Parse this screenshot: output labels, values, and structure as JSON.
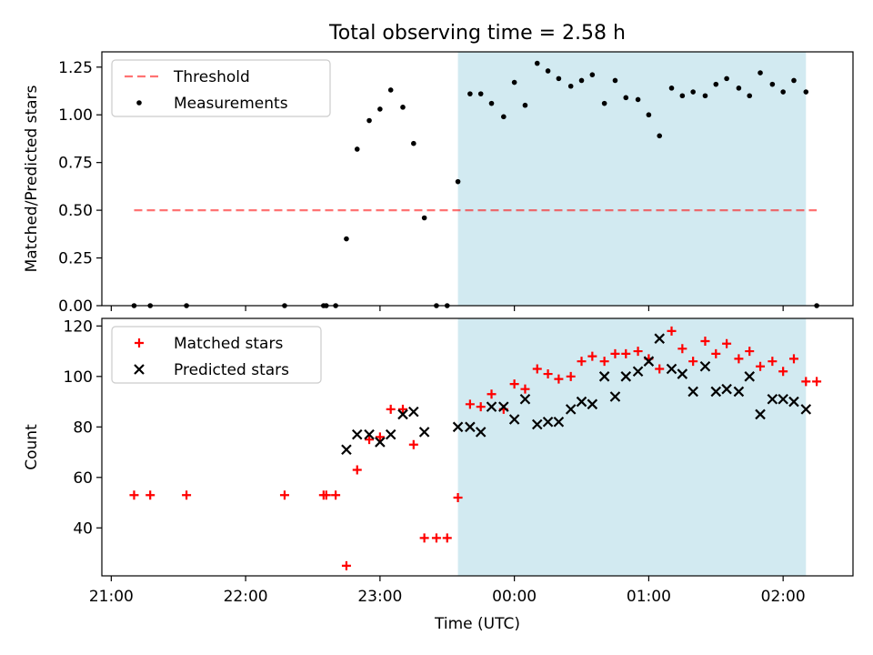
{
  "figure_title": "Total observing time = 2.58 h",
  "colors": {
    "shade": "#add8e6",
    "threshold": "#ff0000",
    "matched": "#ff0000",
    "predicted": "#000000",
    "measure": "#000000"
  },
  "chart_data": [
    {
      "type": "scatter",
      "title": "Total observing time = 2.58 h",
      "ylabel": "Matched/Predicted stars",
      "xlabel": "",
      "x_unit": "time (UTC), hours after 21:00",
      "xlim": [
        20.93,
        26.52
      ],
      "ylim": [
        0,
        1.33
      ],
      "yticks": [
        "0.00",
        "0.25",
        "0.50",
        "0.75",
        "1.00",
        "1.25"
      ],
      "shaded_region": {
        "x0": 23.58,
        "x1": 26.17
      },
      "legend": {
        "position": "top-left",
        "entries": [
          "Threshold",
          "Measurements"
        ]
      },
      "threshold": {
        "name": "Threshold",
        "y": 0.5,
        "x0": 21.17,
        "x1": 26.25,
        "style": "dashed"
      },
      "series": [
        {
          "name": "Measurements",
          "points": [
            [
              21.17,
              0.0
            ],
            [
              21.29,
              0.0
            ],
            [
              21.56,
              0.0
            ],
            [
              22.29,
              0.0
            ],
            [
              22.58,
              0.0
            ],
            [
              22.6,
              0.0
            ],
            [
              22.67,
              0.0
            ],
            [
              22.75,
              0.35
            ],
            [
              22.83,
              0.82
            ],
            [
              22.92,
              0.97
            ],
            [
              23.0,
              1.03
            ],
            [
              23.08,
              1.13
            ],
            [
              23.17,
              1.04
            ],
            [
              23.25,
              0.85
            ],
            [
              23.33,
              0.46
            ],
            [
              23.42,
              0.0
            ],
            [
              23.5,
              0.0
            ],
            [
              23.58,
              0.65
            ],
            [
              23.67,
              1.11
            ],
            [
              23.75,
              1.11
            ],
            [
              23.83,
              1.06
            ],
            [
              23.92,
              0.99
            ],
            [
              24.0,
              1.17
            ],
            [
              24.08,
              1.05
            ],
            [
              24.17,
              1.27
            ],
            [
              24.25,
              1.23
            ],
            [
              24.33,
              1.19
            ],
            [
              24.42,
              1.15
            ],
            [
              24.5,
              1.18
            ],
            [
              24.58,
              1.21
            ],
            [
              24.67,
              1.06
            ],
            [
              24.75,
              1.18
            ],
            [
              24.83,
              1.09
            ],
            [
              24.92,
              1.08
            ],
            [
              25.0,
              1.0
            ],
            [
              25.08,
              0.89
            ],
            [
              25.17,
              1.14
            ],
            [
              25.25,
              1.1
            ],
            [
              25.33,
              1.12
            ],
            [
              25.42,
              1.1
            ],
            [
              25.5,
              1.16
            ],
            [
              25.58,
              1.19
            ],
            [
              25.67,
              1.14
            ],
            [
              25.75,
              1.1
            ],
            [
              25.83,
              1.22
            ],
            [
              25.92,
              1.16
            ],
            [
              26.0,
              1.12
            ],
            [
              26.08,
              1.18
            ],
            [
              26.17,
              1.12
            ],
            [
              26.25,
              0.0
            ]
          ]
        }
      ]
    },
    {
      "type": "scatter",
      "title": "",
      "ylabel": "Count",
      "xlabel": "Time (UTC)",
      "x_unit": "time (UTC), hours after 21:00",
      "xlim": [
        20.93,
        26.52
      ],
      "ylim": [
        21,
        123
      ],
      "yticks": [
        "40",
        "60",
        "80",
        "100",
        "120"
      ],
      "xticks": [
        "21:00",
        "22:00",
        "23:00",
        "00:00",
        "01:00",
        "02:00"
      ],
      "shaded_region": {
        "x0": 23.58,
        "x1": 26.17
      },
      "legend": {
        "position": "top-left",
        "entries": [
          "Matched stars",
          "Predicted stars"
        ]
      },
      "series": [
        {
          "name": "Matched stars",
          "marker": "+",
          "points": [
            [
              21.17,
              53
            ],
            [
              21.29,
              53
            ],
            [
              21.56,
              53
            ],
            [
              22.29,
              53
            ],
            [
              22.58,
              53
            ],
            [
              22.6,
              53
            ],
            [
              22.67,
              53
            ],
            [
              22.75,
              25
            ],
            [
              22.83,
              63
            ],
            [
              22.92,
              75
            ],
            [
              23.0,
              76
            ],
            [
              23.08,
              87
            ],
            [
              23.17,
              87
            ],
            [
              23.25,
              73
            ],
            [
              23.33,
              36
            ],
            [
              23.42,
              36
            ],
            [
              23.5,
              36
            ],
            [
              23.58,
              52
            ],
            [
              23.67,
              89
            ],
            [
              23.75,
              88
            ],
            [
              23.83,
              93
            ],
            [
              23.92,
              87
            ],
            [
              24.0,
              97
            ],
            [
              24.08,
              95
            ],
            [
              24.17,
              103
            ],
            [
              24.25,
              101
            ],
            [
              24.33,
              99
            ],
            [
              24.42,
              100
            ],
            [
              24.5,
              106
            ],
            [
              24.58,
              108
            ],
            [
              24.67,
              106
            ],
            [
              24.75,
              109
            ],
            [
              24.83,
              109
            ],
            [
              24.92,
              110
            ],
            [
              25.0,
              107
            ],
            [
              25.08,
              103
            ],
            [
              25.17,
              118
            ],
            [
              25.25,
              111
            ],
            [
              25.33,
              106
            ],
            [
              25.42,
              114
            ],
            [
              25.5,
              109
            ],
            [
              25.58,
              113
            ],
            [
              25.67,
              107
            ],
            [
              25.75,
              110
            ],
            [
              25.83,
              104
            ],
            [
              25.92,
              106
            ],
            [
              26.0,
              102
            ],
            [
              26.08,
              107
            ],
            [
              26.17,
              98
            ],
            [
              26.25,
              98
            ]
          ]
        },
        {
          "name": "Predicted stars",
          "marker": "x",
          "points": [
            [
              22.75,
              71
            ],
            [
              22.83,
              77
            ],
            [
              22.92,
              77
            ],
            [
              23.0,
              74
            ],
            [
              23.08,
              77
            ],
            [
              23.17,
              85
            ],
            [
              23.25,
              86
            ],
            [
              23.33,
              78
            ],
            [
              23.58,
              80
            ],
            [
              23.67,
              80
            ],
            [
              23.75,
              78
            ],
            [
              23.83,
              88
            ],
            [
              23.92,
              88
            ],
            [
              24.0,
              83
            ],
            [
              24.08,
              91
            ],
            [
              24.17,
              81
            ],
            [
              24.25,
              82
            ],
            [
              24.33,
              82
            ],
            [
              24.42,
              87
            ],
            [
              24.5,
              90
            ],
            [
              24.58,
              89
            ],
            [
              24.67,
              100
            ],
            [
              24.75,
              92
            ],
            [
              24.83,
              100
            ],
            [
              24.92,
              102
            ],
            [
              25.0,
              106
            ],
            [
              25.08,
              115
            ],
            [
              25.17,
              103
            ],
            [
              25.25,
              101
            ],
            [
              25.33,
              94
            ],
            [
              25.42,
              104
            ],
            [
              25.5,
              94
            ],
            [
              25.58,
              95
            ],
            [
              25.67,
              94
            ],
            [
              25.75,
              100
            ],
            [
              25.83,
              85
            ],
            [
              25.92,
              91
            ],
            [
              26.0,
              91
            ],
            [
              26.08,
              90
            ],
            [
              26.17,
              87
            ]
          ]
        }
      ]
    }
  ]
}
